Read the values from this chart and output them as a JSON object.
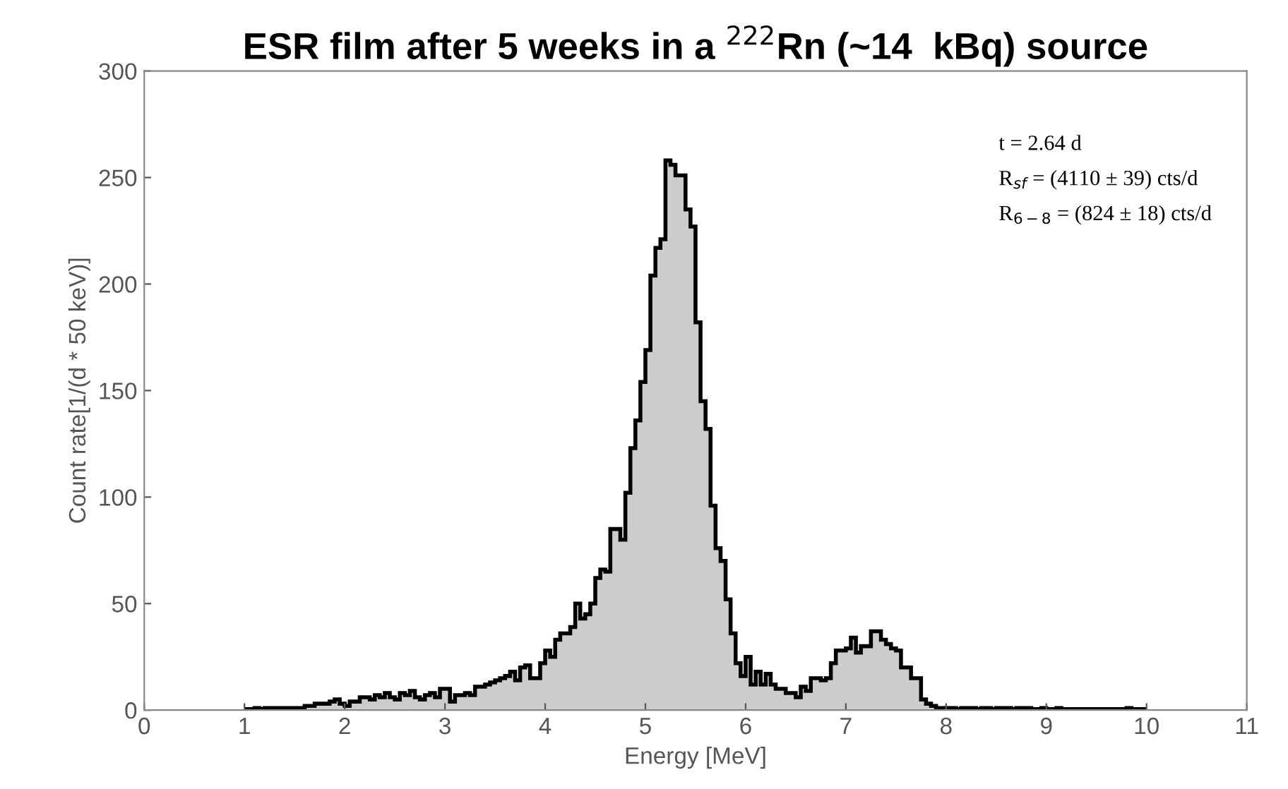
{
  "chart_data": {
    "type": "histogram",
    "title": "ESR film after 5 weeks in a $^{222}$Rn (~14  kBq) source",
    "xlabel": "Energy [MeV]",
    "ylabel": "Count rate[1/(d * 50 keV)]",
    "color": "#cccccc",
    "bins": [
      1.0,
      1.05,
      1.1,
      1.15,
      1.2,
      1.25,
      1.3,
      1.35,
      1.4,
      1.45,
      1.5,
      1.55,
      1.6,
      1.65,
      1.7,
      1.75,
      1.8,
      1.85,
      1.9,
      1.95,
      2.0,
      2.05,
      2.1,
      2.15,
      2.2,
      2.25,
      2.3,
      2.35,
      2.4,
      2.45,
      2.5,
      2.55,
      2.6,
      2.65,
      2.7,
      2.75,
      2.8,
      2.85,
      2.9,
      2.95,
      3.0,
      3.05,
      3.1,
      3.15,
      3.2,
      3.25,
      3.3,
      3.35,
      3.4,
      3.45,
      3.5,
      3.55,
      3.6,
      3.65,
      3.7,
      3.75,
      3.8,
      3.85,
      3.9,
      3.95,
      4.0,
      4.05,
      4.1,
      4.15,
      4.2,
      4.25,
      4.3,
      4.35,
      4.4,
      4.45,
      4.5,
      4.55,
      4.6,
      4.65,
      4.7,
      4.75,
      4.8,
      4.85,
      4.9,
      4.95,
      5.0,
      5.05,
      5.1,
      5.15,
      5.2,
      5.25,
      5.3,
      5.35,
      5.4,
      5.45,
      5.5,
      5.55,
      5.6,
      5.65,
      5.7,
      5.75,
      5.8,
      5.85,
      5.9,
      5.95,
      6.0,
      6.05,
      6.1,
      6.15,
      6.2,
      6.25,
      6.3,
      6.35,
      6.4,
      6.45,
      6.5,
      6.55,
      6.6,
      6.65,
      6.7,
      6.75,
      6.8,
      6.85,
      6.9,
      6.95,
      7.0,
      7.05,
      7.1,
      7.15,
      7.2,
      7.25,
      7.3,
      7.35,
      7.4,
      7.45,
      7.5,
      7.55,
      7.6,
      7.65,
      7.7,
      7.75,
      7.8,
      7.85,
      7.9,
      7.95,
      8.0,
      8.05,
      8.1,
      8.15,
      8.2,
      8.25,
      8.3,
      8.35,
      8.4,
      8.45,
      8.5,
      8.55,
      8.6,
      8.65,
      8.7,
      8.75,
      8.8,
      8.85,
      8.9,
      8.95,
      9.0,
      9.05,
      9.1,
      9.15,
      9.2,
      9.25,
      9.3,
      9.35,
      9.4,
      9.45,
      9.5,
      9.55,
      9.6,
      9.65,
      9.7,
      9.75,
      9.8,
      9.85,
      9.9,
      9.95,
      10.0
    ],
    "values": [
      0.5,
      0.5,
      1,
      0.5,
      1,
      1,
      1,
      1,
      1,
      1,
      1,
      1,
      2,
      2,
      3,
      3,
      3,
      4,
      5,
      3,
      2,
      4,
      4,
      6,
      6,
      5,
      7,
      6,
      8,
      6,
      5,
      8,
      7,
      9,
      6,
      5,
      7,
      8,
      6,
      10,
      10,
      4,
      7,
      7,
      8,
      7,
      11,
      11,
      12,
      13,
      14,
      15,
      16,
      18,
      14,
      20,
      21,
      15,
      15,
      22,
      28,
      25,
      33,
      36,
      36,
      39,
      50,
      43,
      45,
      50,
      62,
      66,
      65,
      85,
      85,
      80,
      102,
      123,
      136,
      154,
      169,
      204,
      217,
      221,
      258,
      256,
      251,
      251,
      235,
      227,
      182,
      145,
      132,
      96,
      76,
      70,
      52,
      36,
      22,
      16,
      25,
      12,
      18,
      12,
      17,
      12,
      10,
      10,
      8,
      8,
      6,
      11,
      9,
      15,
      15,
      14,
      15,
      22,
      28,
      28,
      29,
      34,
      27,
      30,
      30,
      37,
      37,
      33,
      31,
      29,
      28,
      20,
      20,
      15,
      15,
      5,
      3,
      2,
      1,
      1,
      1,
      1,
      0.5,
      1,
      1,
      1,
      0.5,
      1,
      1,
      0.5,
      1,
      1,
      1,
      0.5,
      1,
      1,
      1,
      0.5,
      0.5,
      1,
      0.5,
      0.5,
      1,
      0.5,
      0.5,
      0.5,
      0.5,
      0.5,
      0.5,
      0.5,
      0.5,
      0.5,
      0.5,
      0.5,
      0.5,
      0.5,
      1,
      0.5,
      0.5,
      0.5
    ],
    "xlim": [
      0,
      11
    ],
    "xticks": [
      0,
      1,
      2,
      3,
      4,
      5,
      6,
      7,
      8,
      9,
      10,
      11
    ],
    "ylim": [
      0,
      300
    ],
    "yticks": [
      0,
      50,
      100,
      150,
      200,
      250,
      300
    ],
    "annotations": [
      "t = 2.64 d",
      "R$_{sf}$ = (4110 ± 39) cts/d",
      "R$_{6−8}$ = (824 ± 18) cts/d"
    ]
  }
}
